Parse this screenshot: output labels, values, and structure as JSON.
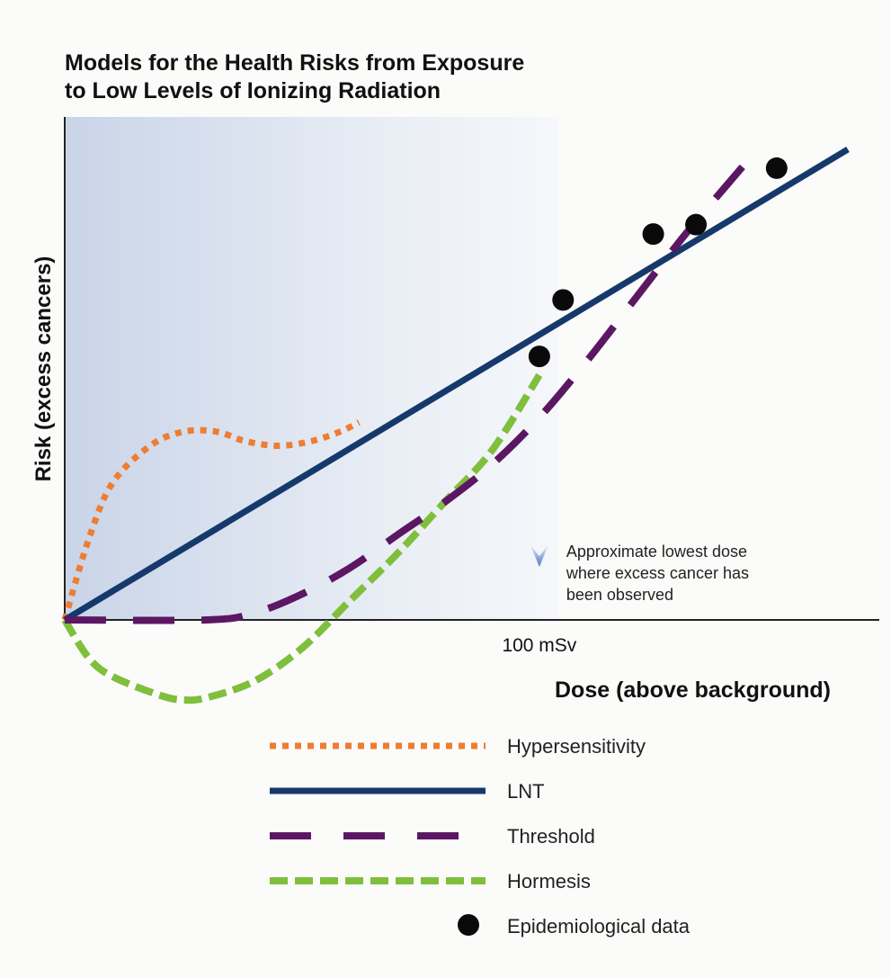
{
  "colors": {
    "hypersensitivity": "#ee7d32",
    "lnt": "#15396b",
    "threshold": "#5c1763",
    "hormesis": "#7fbf3c",
    "epidemiological": "#0a0a0a",
    "region_shade": "#c9d4e8"
  },
  "chart_data": {
    "type": "line",
    "title": [
      "Models for the Health Risks from Exposure",
      "to Low Levels of Ionizing Radiation"
    ],
    "xlabel": "Dose (above background)",
    "ylabel": "Risk (excess cancers)",
    "x_tick_labels": [
      {
        "value": 100,
        "label": "100 mSv"
      }
    ],
    "xlim": [
      0,
      165
    ],
    "ylim": [
      -17,
      100
    ],
    "annotation": {
      "x": 100,
      "lines": [
        "Approximate lowest dose",
        "where excess cancer has",
        "been observed"
      ]
    },
    "series": [
      {
        "name": "Hypersensitivity",
        "style": "dotted",
        "x": [
          0,
          5,
          10,
          18,
          25,
          32,
          38,
          45,
          52,
          58,
          62
        ],
        "y": [
          0,
          17,
          29,
          37,
          40,
          40,
          38,
          37,
          38,
          40,
          42
        ]
      },
      {
        "name": "LNT",
        "style": "solid",
        "x": [
          0,
          165
        ],
        "y": [
          0,
          100
        ]
      },
      {
        "name": "Threshold",
        "style": "dashed",
        "x": [
          0,
          30,
          40,
          50,
          60,
          70,
          80,
          90,
          100,
          110,
          120,
          130,
          140,
          146
        ],
        "y": [
          0,
          0,
          1.5,
          5.5,
          11,
          18,
          25,
          33,
          43,
          55,
          68,
          81,
          93,
          100
        ]
      },
      {
        "name": "Hormesis",
        "style": "dashed",
        "x": [
          0,
          5,
          10,
          20,
          25,
          30,
          40,
          50,
          60,
          70,
          80,
          90,
          100
        ],
        "y": [
          0,
          -8,
          -12,
          -16,
          -17,
          -16.5,
          -13,
          -6,
          4,
          14,
          25,
          36,
          52
        ]
      },
      {
        "name": "Epidemiological data",
        "type": "scatter",
        "x": [
          100,
          105,
          124,
          133,
          150
        ],
        "y": [
          56,
          68,
          82,
          84,
          96
        ]
      }
    ]
  }
}
